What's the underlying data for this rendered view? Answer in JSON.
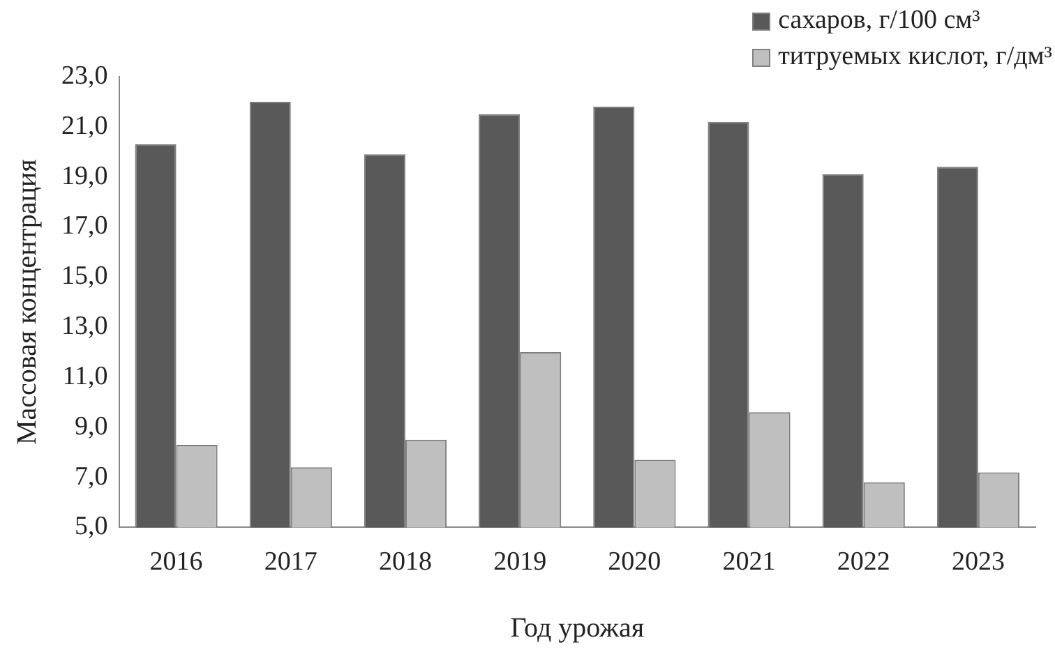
{
  "chart_data": {
    "type": "bar",
    "xlabel": "Год урожая",
    "ylabel": "Массовая концентрация",
    "categories": [
      "2016",
      "2017",
      "2018",
      "2019",
      "2020",
      "2021",
      "2022",
      "2023"
    ],
    "series": [
      {
        "name": "сахаров, г/100 см³",
        "color": "#595959",
        "values": [
          20.3,
          22.0,
          19.9,
          21.5,
          21.8,
          21.2,
          19.1,
          19.4
        ]
      },
      {
        "name": "титруемых кислот, г/дм³",
        "color": "#bfbfbf",
        "values": [
          8.3,
          7.4,
          8.5,
          12.0,
          7.7,
          9.6,
          6.8,
          7.2
        ]
      }
    ],
    "ylim": [
      5,
      23
    ],
    "yticks": [
      {
        "value": 5,
        "label": "5,0"
      },
      {
        "value": 7,
        "label": "7,0"
      },
      {
        "value": 9,
        "label": "9,0"
      },
      {
        "value": 11,
        "label": "11,0"
      },
      {
        "value": 13,
        "label": "13,0"
      },
      {
        "value": 15,
        "label": "15,0"
      },
      {
        "value": 17,
        "label": "17,0"
      },
      {
        "value": 19,
        "label": "19,0"
      },
      {
        "value": 21,
        "label": "21,0"
      },
      {
        "value": 23,
        "label": "23,0"
      }
    ],
    "legend": "top right"
  }
}
